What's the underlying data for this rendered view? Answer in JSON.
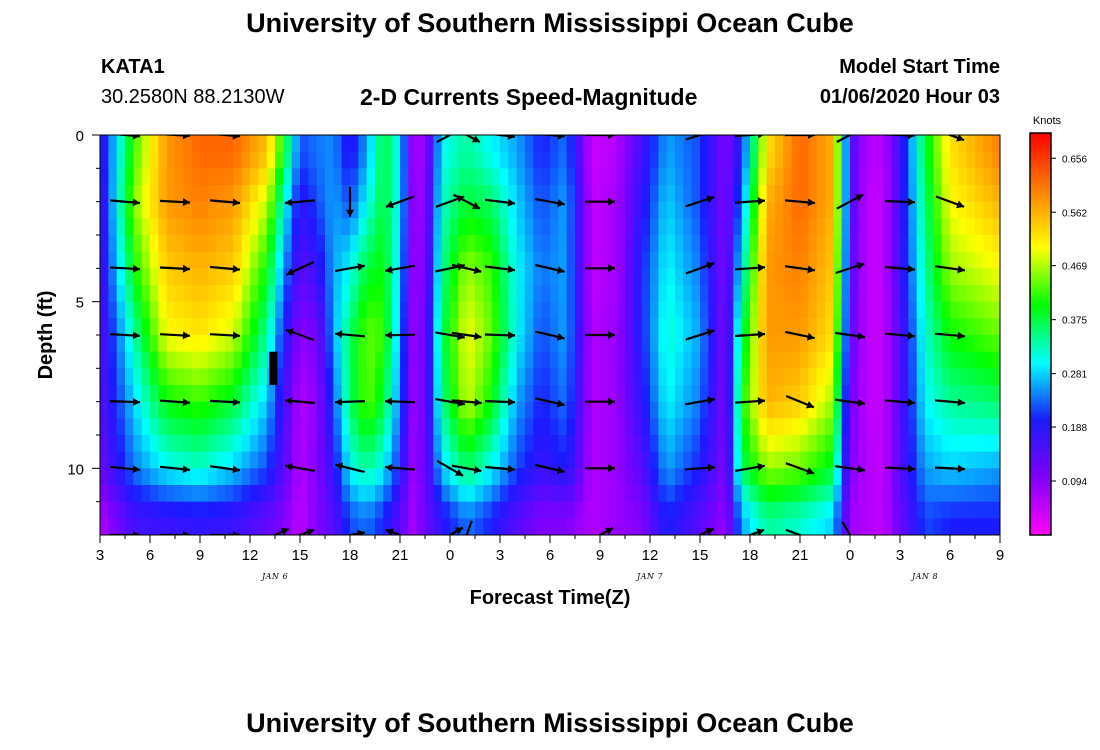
{
  "header": {
    "title_top": "University of Southern Mississippi Ocean Cube",
    "title_bottom": "University of Southern Mississippi Ocean Cube",
    "station_id": "KATA1",
    "station_coords": "30.2580N 88.2130W",
    "model_start_label": "Model Start Time",
    "model_start_value": "01/06/2020 Hour 03"
  },
  "chart_data": {
    "type": "heatmap",
    "title": "2-D Currents Speed-Magnitude",
    "xlabel": "Forecast Time(Z)",
    "ylabel": "Depth (ft)",
    "x_tick_labels": [
      "3",
      "6",
      "9",
      "12",
      "15",
      "18",
      "21",
      "0",
      "3",
      "6",
      "9",
      "12",
      "15",
      "18",
      "21",
      "0",
      "3",
      "6",
      "9"
    ],
    "x_range_hours": [
      0,
      54
    ],
    "date_labels": [
      {
        "text": "JAN 6",
        "hour": 10.5
      },
      {
        "text": "JAN 7",
        "hour": 33
      },
      {
        "text": "JAN 8",
        "hour": 49.5
      }
    ],
    "y_tick_labels": [
      "0",
      "5",
      "10"
    ],
    "ylim": [
      0,
      12
    ],
    "y_inverted": true,
    "colorbar": {
      "unit": "Knots",
      "ticks": [
        0.656,
        0.562,
        0.469,
        0.375,
        0.281,
        0.188,
        0.094
      ],
      "range": [
        0.0,
        0.7
      ],
      "colors": [
        "#ff00ff",
        "#8000ff",
        "#1a1aff",
        "#00ffff",
        "#00ff00",
        "#ffff00",
        "#ff8000",
        "#ff0000"
      ]
    },
    "depths_ft": [
      0.5,
      2,
      4,
      6,
      8,
      10,
      11.5
    ],
    "speed_profile": [
      {
        "hour": 0,
        "speed": [
          0.16,
          0.15,
          0.15,
          0.14,
          0.14,
          0.12,
          0.06
        ]
      },
      {
        "hour": 2,
        "speed": [
          0.42,
          0.45,
          0.4,
          0.33,
          0.28,
          0.24,
          0.16
        ]
      },
      {
        "hour": 4,
        "speed": [
          0.58,
          0.58,
          0.54,
          0.5,
          0.4,
          0.3,
          0.17
        ]
      },
      {
        "hour": 6,
        "speed": [
          0.62,
          0.6,
          0.56,
          0.52,
          0.42,
          0.32,
          0.18
        ]
      },
      {
        "hour": 8,
        "speed": [
          0.62,
          0.58,
          0.54,
          0.48,
          0.38,
          0.28,
          0.17
        ]
      },
      {
        "hour": 10,
        "speed": [
          0.55,
          0.48,
          0.4,
          0.34,
          0.28,
          0.22,
          0.13
        ]
      },
      {
        "hour": 11,
        "speed": [
          0.4,
          0.32,
          0.26,
          0.2,
          0.16,
          0.14,
          0.1
        ]
      },
      {
        "hour": 12,
        "speed": [
          0.22,
          0.18,
          0.14,
          0.09,
          0.06,
          0.06,
          0.05
        ]
      },
      {
        "hour": 13,
        "speed": [
          0.24,
          0.22,
          0.17,
          0.11,
          0.09,
          0.1,
          0.1
        ]
      },
      {
        "hour": 14,
        "speed": [
          0.25,
          0.26,
          0.26,
          0.26,
          0.22,
          0.18,
          0.14
        ]
      },
      {
        "hour": 15,
        "speed": [
          0.18,
          0.22,
          0.3,
          0.36,
          0.36,
          0.3,
          0.22
        ]
      },
      {
        "hour": 16,
        "speed": [
          0.26,
          0.3,
          0.38,
          0.44,
          0.44,
          0.34,
          0.24
        ]
      },
      {
        "hour": 17,
        "speed": [
          0.38,
          0.38,
          0.4,
          0.42,
          0.38,
          0.3,
          0.2
        ]
      },
      {
        "hour": 18,
        "speed": [
          0.3,
          0.3,
          0.28,
          0.26,
          0.24,
          0.2,
          0.14
        ]
      },
      {
        "hour": 18.8,
        "speed": [
          0.07,
          0.08,
          0.08,
          0.08,
          0.08,
          0.08,
          0.07
        ]
      },
      {
        "hour": 19.5,
        "speed": [
          0.08,
          0.09,
          0.1,
          0.12,
          0.12,
          0.12,
          0.12
        ]
      },
      {
        "hour": 20.5,
        "speed": [
          0.3,
          0.32,
          0.34,
          0.36,
          0.34,
          0.28,
          0.18
        ]
      },
      {
        "hour": 22,
        "speed": [
          0.34,
          0.38,
          0.46,
          0.5,
          0.48,
          0.36,
          0.24
        ]
      },
      {
        "hour": 23.5,
        "speed": [
          0.3,
          0.36,
          0.42,
          0.44,
          0.4,
          0.3,
          0.2
        ]
      },
      {
        "hour": 25,
        "speed": [
          0.26,
          0.28,
          0.3,
          0.3,
          0.26,
          0.22,
          0.14
        ]
      },
      {
        "hour": 26.5,
        "speed": [
          0.2,
          0.22,
          0.24,
          0.22,
          0.2,
          0.17,
          0.1
        ]
      },
      {
        "hour": 28,
        "speed": [
          0.24,
          0.26,
          0.26,
          0.26,
          0.24,
          0.2,
          0.1
        ]
      },
      {
        "hour": 29.5,
        "speed": [
          0.04,
          0.05,
          0.05,
          0.06,
          0.06,
          0.06,
          0.06
        ]
      },
      {
        "hour": 31,
        "speed": [
          0.06,
          0.07,
          0.07,
          0.08,
          0.08,
          0.08,
          0.08
        ]
      },
      {
        "hour": 32.5,
        "speed": [
          0.16,
          0.18,
          0.2,
          0.2,
          0.18,
          0.14,
          0.1
        ]
      },
      {
        "hour": 34,
        "speed": [
          0.26,
          0.28,
          0.3,
          0.32,
          0.3,
          0.26,
          0.2
        ]
      },
      {
        "hour": 36,
        "speed": [
          0.22,
          0.22,
          0.24,
          0.26,
          0.24,
          0.2,
          0.14
        ]
      },
      {
        "hour": 37.5,
        "speed": [
          0.1,
          0.1,
          0.1,
          0.1,
          0.1,
          0.1,
          0.08
        ]
      },
      {
        "hour": 38.5,
        "speed": [
          0.2,
          0.24,
          0.3,
          0.36,
          0.4,
          0.36,
          0.26
        ]
      },
      {
        "hour": 40,
        "speed": [
          0.52,
          0.56,
          0.58,
          0.58,
          0.56,
          0.46,
          0.34
        ]
      },
      {
        "hour": 42,
        "speed": [
          0.62,
          0.62,
          0.6,
          0.58,
          0.54,
          0.44,
          0.32
        ]
      },
      {
        "hour": 44,
        "speed": [
          0.56,
          0.56,
          0.54,
          0.52,
          0.46,
          0.38,
          0.28
        ]
      },
      {
        "hour": 45,
        "speed": [
          0.16,
          0.16,
          0.15,
          0.14,
          0.12,
          0.1,
          0.08
        ]
      },
      {
        "hour": 46,
        "speed": [
          0.06,
          0.05,
          0.05,
          0.05,
          0.05,
          0.06,
          0.06
        ]
      },
      {
        "hour": 47,
        "speed": [
          0.06,
          0.05,
          0.05,
          0.05,
          0.05,
          0.05,
          0.05
        ]
      },
      {
        "hour": 48,
        "speed": [
          0.16,
          0.16,
          0.16,
          0.14,
          0.14,
          0.14,
          0.12
        ]
      },
      {
        "hour": 49.5,
        "speed": [
          0.38,
          0.36,
          0.34,
          0.32,
          0.3,
          0.26,
          0.22
        ]
      },
      {
        "hour": 51,
        "speed": [
          0.52,
          0.5,
          0.46,
          0.4,
          0.34,
          0.28,
          0.2
        ]
      },
      {
        "hour": 54,
        "speed": [
          0.6,
          0.56,
          0.5,
          0.44,
          0.36,
          0.26,
          0.2
        ]
      }
    ],
    "vector_rows_ft": [
      0,
      2,
      4,
      6,
      8,
      10,
      12
    ],
    "vectors": [
      {
        "hour": 1.5,
        "dirs": [
          -5,
          -5,
          -3,
          -3,
          -2,
          -6,
          0
        ]
      },
      {
        "hour": 4.5,
        "dirs": [
          -3,
          -3,
          -3,
          -3,
          -4,
          -6,
          0
        ]
      },
      {
        "hour": 7.5,
        "dirs": [
          -5,
          -5,
          -5,
          -3,
          -3,
          -8,
          0
        ]
      },
      {
        "hour": 10.5,
        "dirs": [
          null,
          null,
          null,
          null,
          null,
          null,
          25
        ]
      },
      {
        "hour": 12,
        "dirs": [
          null,
          -175,
          -155,
          160,
          175,
          170,
          20
        ]
      },
      {
        "hour": 15,
        "dirs": [
          null,
          -90,
          10,
          175,
          -178,
          166,
          10
        ]
      },
      {
        "hour": 18,
        "dirs": [
          null,
          200,
          190,
          181,
          178,
          175,
          160
        ]
      },
      {
        "hour": 21,
        "dirs": [
          28,
          20,
          12,
          -10,
          -10,
          -30,
          30
        ]
      },
      {
        "hour": 22,
        "dirs": [
          -28,
          -28,
          -13,
          -8,
          -5,
          -10,
          -110
        ]
      },
      {
        "hour": 24,
        "dirs": [
          -7,
          -7,
          -7,
          -2,
          -2,
          -5,
          null
        ]
      },
      {
        "hour": 27,
        "dirs": [
          -5,
          -10,
          -13,
          -13,
          -13,
          -13,
          null
        ]
      },
      {
        "hour": 30,
        "dirs": [
          0,
          0,
          0,
          0,
          0,
          0,
          28
        ]
      },
      {
        "hour": 36,
        "dirs": [
          18,
          18,
          20,
          18,
          10,
          4,
          25
        ]
      },
      {
        "hour": 39,
        "dirs": [
          4,
          4,
          4,
          4,
          4,
          10,
          20
        ]
      },
      {
        "hour": 42,
        "dirs": [
          0,
          -5,
          -8,
          -12,
          -22,
          -20,
          -20
        ]
      },
      {
        "hour": 45,
        "dirs": [
          28,
          28,
          18,
          -8,
          -8,
          -8,
          -60
        ]
      },
      {
        "hour": 48,
        "dirs": [
          -2,
          -2,
          -5,
          -5,
          -5,
          -3,
          null
        ]
      },
      {
        "hour": 51,
        "dirs": [
          -20,
          -20,
          -8,
          -5,
          -5,
          -3,
          null
        ]
      }
    ],
    "marker": {
      "hour": 10.4,
      "depth_top": 6.5,
      "depth_bottom": 7.5
    }
  }
}
